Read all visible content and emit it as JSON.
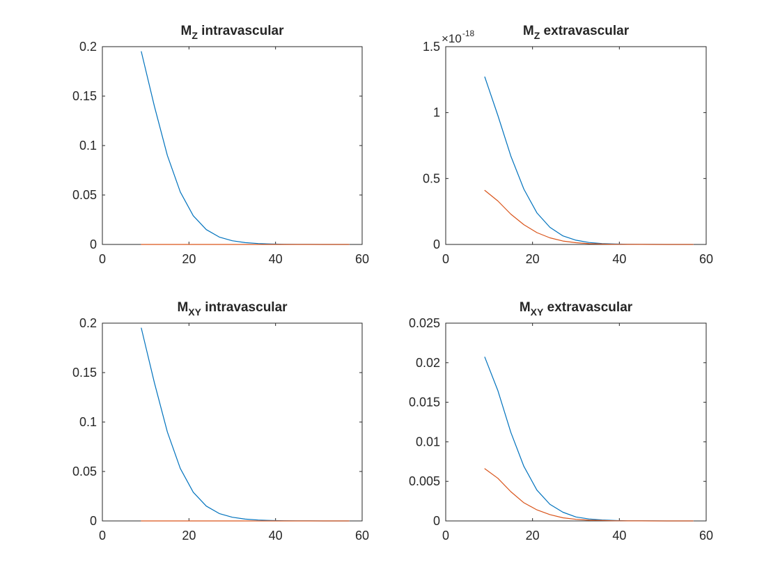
{
  "figure": {
    "background": "#ffffff",
    "axis_color": "#262626"
  },
  "chart_data": [
    {
      "type": "line",
      "title": {
        "main": "M",
        "sub": "Z",
        "rest": " intravascular"
      },
      "xlabel": "",
      "ylabel": "",
      "xlim": [
        0,
        60
      ],
      "ylim": [
        0,
        0.2
      ],
      "xticks": [
        0,
        20,
        40,
        60
      ],
      "xtick_labels": [
        "0",
        "20",
        "40",
        "60"
      ],
      "yticks": [
        0,
        0.05,
        0.1,
        0.15,
        0.2
      ],
      "ytick_labels": [
        "0",
        "0.05",
        "0.1",
        "0.15",
        "0.2"
      ],
      "exponent": null,
      "grid": false,
      "legend": null,
      "x": [
        9,
        12,
        15,
        18,
        21,
        24,
        27,
        30,
        33,
        36,
        39,
        42,
        45,
        48,
        51,
        54,
        57
      ],
      "series": [
        {
          "color": "#0072BD",
          "values": [
            0.195,
            0.14,
            0.09,
            0.053,
            0.029,
            0.015,
            0.0075,
            0.0037,
            0.0018,
            0.0009,
            0.0004,
            0.0002,
            0.0001,
            5e-05,
            2e-05,
            1e-05,
            0.0
          ]
        },
        {
          "color": "#D95319",
          "values": [
            0,
            0,
            0,
            0,
            0,
            0,
            0,
            0,
            0,
            0,
            0,
            0,
            0,
            0,
            0,
            0,
            0
          ]
        }
      ]
    },
    {
      "type": "line",
      "title": {
        "main": "M",
        "sub": "Z",
        "rest": " extravascular"
      },
      "xlabel": "",
      "ylabel": "",
      "xlim": [
        0,
        60
      ],
      "ylim": [
        0,
        1.5
      ],
      "xticks": [
        0,
        20,
        40,
        60
      ],
      "xtick_labels": [
        "0",
        "20",
        "40",
        "60"
      ],
      "yticks": [
        0,
        0.5,
        1,
        1.5
      ],
      "ytick_labels": [
        "0",
        "0.5",
        "1",
        "1.5"
      ],
      "exponent": {
        "base": "×10",
        "power": "-18"
      },
      "grid": false,
      "legend": null,
      "x": [
        9,
        12,
        15,
        18,
        21,
        24,
        27,
        30,
        33,
        36,
        39,
        42,
        45,
        48,
        51,
        54,
        57
      ],
      "series": [
        {
          "color": "#0072BD",
          "values": [
            1.27,
            0.98,
            0.67,
            0.42,
            0.24,
            0.13,
            0.065,
            0.032,
            0.015,
            0.007,
            0.003,
            0.0015,
            0.0007,
            0.0003,
            0.0001,
            5e-05,
            0.0
          ]
        },
        {
          "color": "#D95319",
          "values": [
            0.41,
            0.33,
            0.23,
            0.15,
            0.09,
            0.05,
            0.026,
            0.013,
            0.006,
            0.003,
            0.0013,
            0.0006,
            0.0003,
            0.0001,
            5e-05,
            2e-05,
            0.0
          ]
        }
      ]
    },
    {
      "type": "line",
      "title": {
        "main": "M",
        "sub": "XY",
        "rest": " intravascular"
      },
      "xlabel": "",
      "ylabel": "",
      "xlim": [
        0,
        60
      ],
      "ylim": [
        0,
        0.2
      ],
      "xticks": [
        0,
        20,
        40,
        60
      ],
      "xtick_labels": [
        "0",
        "20",
        "40",
        "60"
      ],
      "yticks": [
        0,
        0.05,
        0.1,
        0.15,
        0.2
      ],
      "ytick_labels": [
        "0",
        "0.05",
        "0.1",
        "0.15",
        "0.2"
      ],
      "exponent": null,
      "grid": false,
      "legend": null,
      "x": [
        9,
        12,
        15,
        18,
        21,
        24,
        27,
        30,
        33,
        36,
        39,
        42,
        45,
        48,
        51,
        54,
        57
      ],
      "series": [
        {
          "color": "#0072BD",
          "values": [
            0.195,
            0.14,
            0.09,
            0.053,
            0.029,
            0.015,
            0.0075,
            0.0037,
            0.0018,
            0.0009,
            0.0004,
            0.0002,
            0.0001,
            5e-05,
            2e-05,
            1e-05,
            0.0
          ]
        },
        {
          "color": "#D95319",
          "values": [
            0,
            0,
            0,
            0,
            0,
            0,
            0,
            0,
            0,
            0,
            0,
            0,
            0,
            0,
            0,
            0,
            0
          ]
        }
      ]
    },
    {
      "type": "line",
      "title": {
        "main": "M",
        "sub": "XY",
        "rest": " extravascular"
      },
      "xlabel": "",
      "ylabel": "",
      "xlim": [
        0,
        60
      ],
      "ylim": [
        0,
        0.025
      ],
      "xticks": [
        0,
        20,
        40,
        60
      ],
      "xtick_labels": [
        "0",
        "20",
        "40",
        "60"
      ],
      "yticks": [
        0,
        0.005,
        0.01,
        0.015,
        0.02,
        0.025
      ],
      "ytick_labels": [
        "0",
        "0.005",
        "0.01",
        "0.015",
        "0.02",
        "0.025"
      ],
      "exponent": null,
      "grid": false,
      "legend": null,
      "x": [
        9,
        12,
        15,
        18,
        21,
        24,
        27,
        30,
        33,
        36,
        39,
        42,
        45,
        48,
        51,
        54,
        57
      ],
      "series": [
        {
          "color": "#0072BD",
          "values": [
            0.0207,
            0.0165,
            0.0112,
            0.0069,
            0.0039,
            0.0021,
            0.0011,
            0.0005,
            0.00025,
            0.00012,
            5e-05,
            2e-05,
            1e-05,
            5e-06,
            2e-06,
            1e-06,
            0.0
          ]
        },
        {
          "color": "#D95319",
          "values": [
            0.0066,
            0.0054,
            0.0037,
            0.0023,
            0.0014,
            0.0008,
            0.0004,
            0.0002,
            0.0001,
            5e-05,
            2e-05,
            1e-05,
            5e-06,
            2e-06,
            1e-06,
            0.0,
            0.0
          ]
        }
      ]
    }
  ]
}
